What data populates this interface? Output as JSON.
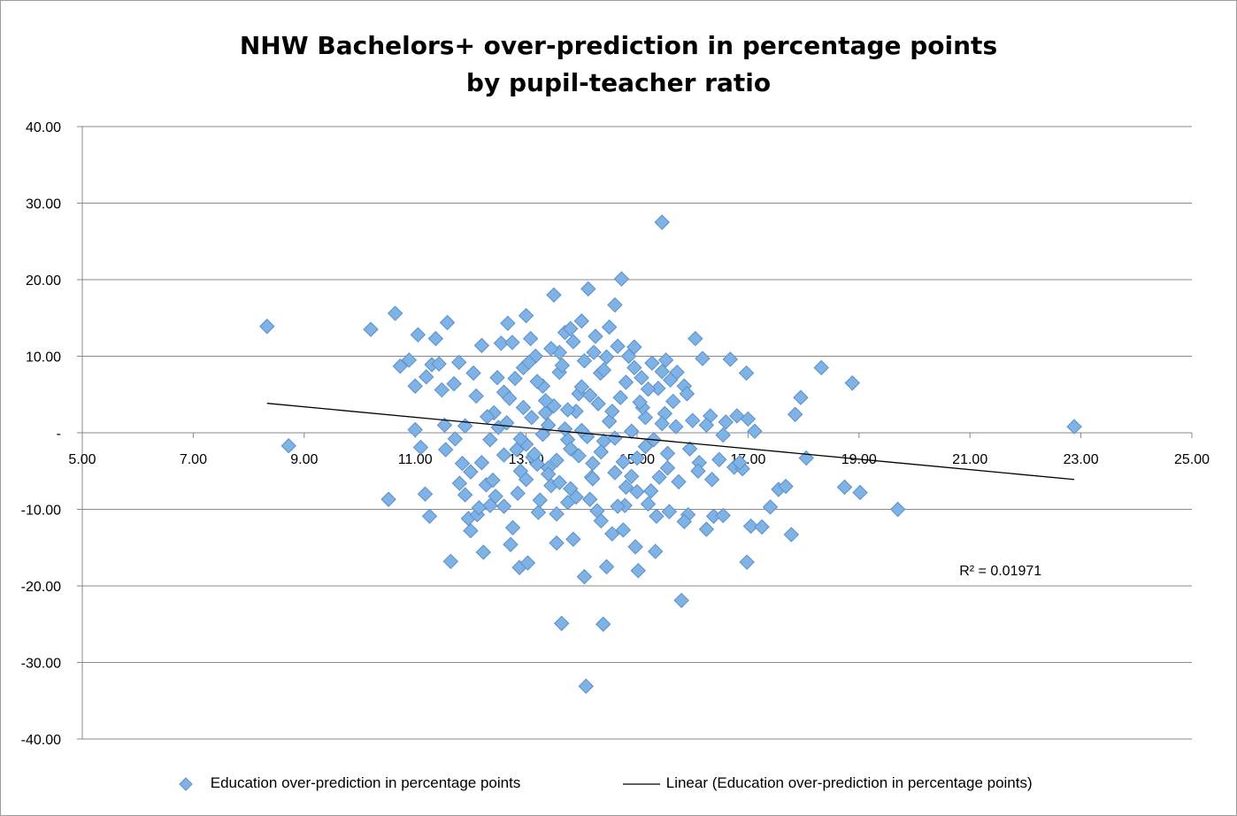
{
  "chart_data": {
    "type": "scatter",
    "title_line1": "NHW Bachelors+ over-prediction in percentage points",
    "title_line2": "by pupil-teacher ratio",
    "xlabel": "",
    "ylabel": "",
    "xlim": [
      5,
      25
    ],
    "ylim": [
      -40,
      40
    ],
    "x_ticks": [
      5,
      7,
      9,
      11,
      13,
      15,
      17,
      19,
      21,
      23,
      25
    ],
    "x_tick_labels": [
      "5.00",
      "7.00",
      "9.00",
      "11.00",
      "13.00",
      "15.00",
      "17.00",
      "19.00",
      "21.00",
      "23.00",
      "25.00"
    ],
    "y_ticks": [
      40,
      30,
      20,
      10,
      0,
      -10,
      -20,
      -30,
      -40
    ],
    "y_tick_labels": [
      "40.00",
      "30.00",
      "20.00",
      "10.00",
      "-",
      "-10.00",
      "-20.00",
      "-30.00",
      "-40.00"
    ],
    "grid": "horizontal",
    "legend_position": "bottom",
    "series": [
      {
        "name": "Education over-prediction in percentage points",
        "color": "#7fb2e5",
        "stroke": "#5d8fc9",
        "marker": "diamond",
        "points": [
          [
            8.33,
            13.9
          ],
          [
            8.72,
            -1.7
          ],
          [
            10.2,
            13.5
          ],
          [
            10.52,
            -8.7
          ],
          [
            10.64,
            15.6
          ],
          [
            10.73,
            8.7
          ],
          [
            10.89,
            9.5
          ],
          [
            11.0,
            0.4
          ],
          [
            11.05,
            12.8
          ],
          [
            11.1,
            -1.9
          ],
          [
            11.18,
            -8.0
          ],
          [
            11.26,
            -10.9
          ],
          [
            11.3,
            8.9
          ],
          [
            11.37,
            12.3
          ],
          [
            11.43,
            9.0
          ],
          [
            11.48,
            5.6
          ],
          [
            11.53,
            1.0
          ],
          [
            11.58,
            14.4
          ],
          [
            11.64,
            -16.8
          ],
          [
            11.72,
            -0.8
          ],
          [
            11.79,
            9.2
          ],
          [
            11.85,
            -4.0
          ],
          [
            11.9,
            -8.1
          ],
          [
            11.96,
            -11.2
          ],
          [
            12.0,
            -12.8
          ],
          [
            12.05,
            7.8
          ],
          [
            12.12,
            -10.7
          ],
          [
            12.2,
            11.4
          ],
          [
            12.23,
            -15.6
          ],
          [
            12.28,
            -6.8
          ],
          [
            12.35,
            -9.5
          ],
          [
            12.42,
            2.6
          ],
          [
            12.48,
            7.2
          ],
          [
            12.55,
            11.7
          ],
          [
            12.6,
            5.3
          ],
          [
            12.67,
            14.3
          ],
          [
            12.72,
            -14.6
          ],
          [
            12.76,
            -12.4
          ],
          [
            12.83,
            -2.2
          ],
          [
            12.88,
            -17.6
          ],
          [
            12.95,
            8.5
          ],
          [
            13.0,
            15.3
          ],
          [
            13.03,
            -17.0
          ],
          [
            13.08,
            12.3
          ],
          [
            13.12,
            -3.2
          ],
          [
            13.17,
            10.0
          ],
          [
            13.22,
            -10.4
          ],
          [
            13.3,
            6.1
          ],
          [
            13.35,
            2.6
          ],
          [
            13.4,
            -4.6
          ],
          [
            13.45,
            -6.9
          ],
          [
            13.5,
            18.0
          ],
          [
            13.55,
            -14.4
          ],
          [
            13.6,
            10.5
          ],
          [
            13.64,
            -24.9
          ],
          [
            13.7,
            13.1
          ],
          [
            13.75,
            -0.9
          ],
          [
            13.8,
            13.6
          ],
          [
            13.85,
            -13.9
          ],
          [
            13.9,
            -8.4
          ],
          [
            13.95,
            5.1
          ],
          [
            14.0,
            14.6
          ],
          [
            14.05,
            -18.8
          ],
          [
            14.08,
            -33.1
          ],
          [
            14.12,
            18.8
          ],
          [
            14.18,
            -5.8
          ],
          [
            14.22,
            10.5
          ],
          [
            14.28,
            -10.2
          ],
          [
            14.34,
            7.8
          ],
          [
            14.39,
            -25.0
          ],
          [
            14.45,
            -17.5
          ],
          [
            14.5,
            13.8
          ],
          [
            14.55,
            -13.2
          ],
          [
            14.6,
            16.7
          ],
          [
            14.65,
            11.3
          ],
          [
            14.72,
            20.1
          ],
          [
            14.78,
            -9.5
          ],
          [
            14.85,
            10.0
          ],
          [
            14.9,
            -5.7
          ],
          [
            14.97,
            -14.9
          ],
          [
            15.02,
            -18.0
          ],
          [
            15.08,
            7.2
          ],
          [
            15.15,
            2.0
          ],
          [
            15.2,
            -9.3
          ],
          [
            15.27,
            9.1
          ],
          [
            15.33,
            -15.5
          ],
          [
            15.38,
            5.8
          ],
          [
            15.45,
            27.5
          ],
          [
            15.52,
            9.5
          ],
          [
            15.58,
            -10.3
          ],
          [
            15.65,
            4.1
          ],
          [
            15.72,
            7.9
          ],
          [
            15.8,
            -21.9
          ],
          [
            15.85,
            6.1
          ],
          [
            15.92,
            -10.7
          ],
          [
            16.0,
            1.6
          ],
          [
            16.05,
            12.3
          ],
          [
            16.12,
            -3.9
          ],
          [
            16.18,
            9.7
          ],
          [
            16.25,
            -12.6
          ],
          [
            16.32,
            2.2
          ],
          [
            16.38,
            -10.9
          ],
          [
            16.48,
            -3.5
          ],
          [
            16.55,
            -10.8
          ],
          [
            16.6,
            1.4
          ],
          [
            16.68,
            9.6
          ],
          [
            16.75,
            -4.5
          ],
          [
            16.8,
            2.2
          ],
          [
            16.9,
            -4.7
          ],
          [
            16.97,
            7.8
          ],
          [
            16.98,
            -16.9
          ],
          [
            17.05,
            -12.2
          ],
          [
            17.12,
            0.2
          ],
          [
            17.25,
            -12.3
          ],
          [
            17.4,
            -9.7
          ],
          [
            17.55,
            -7.4
          ],
          [
            17.68,
            -7.0
          ],
          [
            17.78,
            -13.3
          ],
          [
            17.85,
            2.4
          ],
          [
            17.95,
            4.6
          ],
          [
            18.05,
            -3.3
          ],
          [
            18.32,
            8.5
          ],
          [
            18.74,
            -7.1
          ],
          [
            18.88,
            6.5
          ],
          [
            19.02,
            -7.8
          ],
          [
            19.7,
            -10.0
          ],
          [
            22.88,
            0.8
          ],
          [
            11.55,
            -2.2
          ],
          [
            12.9,
            -5.0
          ],
          [
            13.2,
            -4.1
          ],
          [
            13.6,
            -6.5
          ],
          [
            14.2,
            -4.0
          ],
          [
            14.8,
            -7.1
          ],
          [
            13.0,
            -1.5
          ],
          [
            13.4,
            1.0
          ],
          [
            13.8,
            -2.1
          ],
          [
            14.4,
            -1.1
          ],
          [
            15.0,
            -3.3
          ],
          [
            12.7,
            4.5
          ],
          [
            13.1,
            2.0
          ],
          [
            13.5,
            3.5
          ],
          [
            13.9,
            2.8
          ],
          [
            14.3,
            3.8
          ],
          [
            14.7,
            4.6
          ],
          [
            15.1,
            3.3
          ],
          [
            15.5,
            2.5
          ],
          [
            12.5,
            0.7
          ],
          [
            12.9,
            -0.8
          ],
          [
            13.3,
            -0.2
          ],
          [
            13.7,
            0.5
          ],
          [
            14.1,
            -0.5
          ],
          [
            14.5,
            1.5
          ],
          [
            14.9,
            0.2
          ],
          [
            15.3,
            -0.9
          ],
          [
            15.7,
            0.8
          ],
          [
            12.2,
            -3.9
          ],
          [
            12.6,
            -2.9
          ],
          [
            13.0,
            -6.1
          ],
          [
            13.4,
            -5.4
          ],
          [
            13.8,
            -7.3
          ],
          [
            14.2,
            -6.0
          ],
          [
            14.6,
            -5.2
          ],
          [
            15.0,
            -7.7
          ],
          [
            15.4,
            -5.8
          ],
          [
            12.8,
            7.1
          ],
          [
            13.2,
            6.7
          ],
          [
            13.6,
            7.9
          ],
          [
            14.0,
            6.0
          ],
          [
            14.4,
            8.2
          ],
          [
            14.8,
            6.6
          ],
          [
            15.2,
            5.7
          ],
          [
            15.6,
            6.9
          ],
          [
            12.4,
            -6.2
          ],
          [
            12.0,
            -5.1
          ],
          [
            11.8,
            -6.6
          ],
          [
            12.1,
            4.8
          ],
          [
            11.9,
            0.9
          ],
          [
            12.3,
            2.1
          ],
          [
            11.7,
            6.4
          ],
          [
            11.2,
            7.3
          ],
          [
            11.0,
            6.1
          ],
          [
            13.05,
            9.2
          ],
          [
            13.65,
            8.8
          ],
          [
            14.05,
            9.4
          ],
          [
            14.45,
            9.9
          ],
          [
            14.95,
            8.5
          ],
          [
            15.45,
            8.0
          ],
          [
            15.9,
            5.1
          ],
          [
            16.1,
            -5.0
          ],
          [
            15.95,
            -2.1
          ],
          [
            16.25,
            1.0
          ],
          [
            15.75,
            -6.4
          ],
          [
            15.55,
            -4.6
          ],
          [
            13.25,
            -8.8
          ],
          [
            13.75,
            -9.1
          ],
          [
            14.15,
            -8.7
          ],
          [
            14.65,
            -9.6
          ],
          [
            15.25,
            -7.6
          ],
          [
            12.85,
            -7.9
          ],
          [
            12.6,
            -9.6
          ],
          [
            13.45,
            11.0
          ],
          [
            13.85,
            11.9
          ],
          [
            14.25,
            12.6
          ],
          [
            12.75,
            11.8
          ],
          [
            14.95,
            11.2
          ],
          [
            15.35,
            -10.9
          ],
          [
            14.35,
            -11.5
          ],
          [
            13.55,
            -10.6
          ],
          [
            12.45,
            -8.3
          ],
          [
            12.15,
            -9.8
          ],
          [
            14.75,
            -12.7
          ],
          [
            15.85,
            -11.6
          ],
          [
            16.35,
            -6.1
          ],
          [
            16.55,
            -0.3
          ],
          [
            16.85,
            -3.9
          ],
          [
            17.0,
            1.8
          ],
          [
            12.95,
            3.3
          ],
          [
            13.35,
            4.2
          ],
          [
            13.75,
            3.0
          ],
          [
            14.15,
            4.9
          ],
          [
            14.55,
            2.8
          ],
          [
            15.05,
            4.0
          ],
          [
            15.45,
            1.2
          ],
          [
            13.15,
            -2.8
          ],
          [
            13.55,
            -3.6
          ],
          [
            13.95,
            -3.0
          ],
          [
            14.35,
            -2.5
          ],
          [
            14.75,
            -3.8
          ],
          [
            15.15,
            -1.8
          ],
          [
            15.55,
            -2.7
          ],
          [
            12.35,
            -0.9
          ],
          [
            12.65,
            1.3
          ],
          [
            14.0,
            0.3
          ],
          [
            14.6,
            -0.7
          ]
        ]
      },
      {
        "name": "Linear (Education over-prediction in percentage points)",
        "color": "#000000",
        "type": "line",
        "points": [
          [
            8.33,
            3.85
          ],
          [
            22.88,
            -6.1
          ]
        ]
      }
    ],
    "annotations": [
      {
        "text": "R² = 0.01971",
        "x": 21.55,
        "y": -17.9
      }
    ]
  }
}
